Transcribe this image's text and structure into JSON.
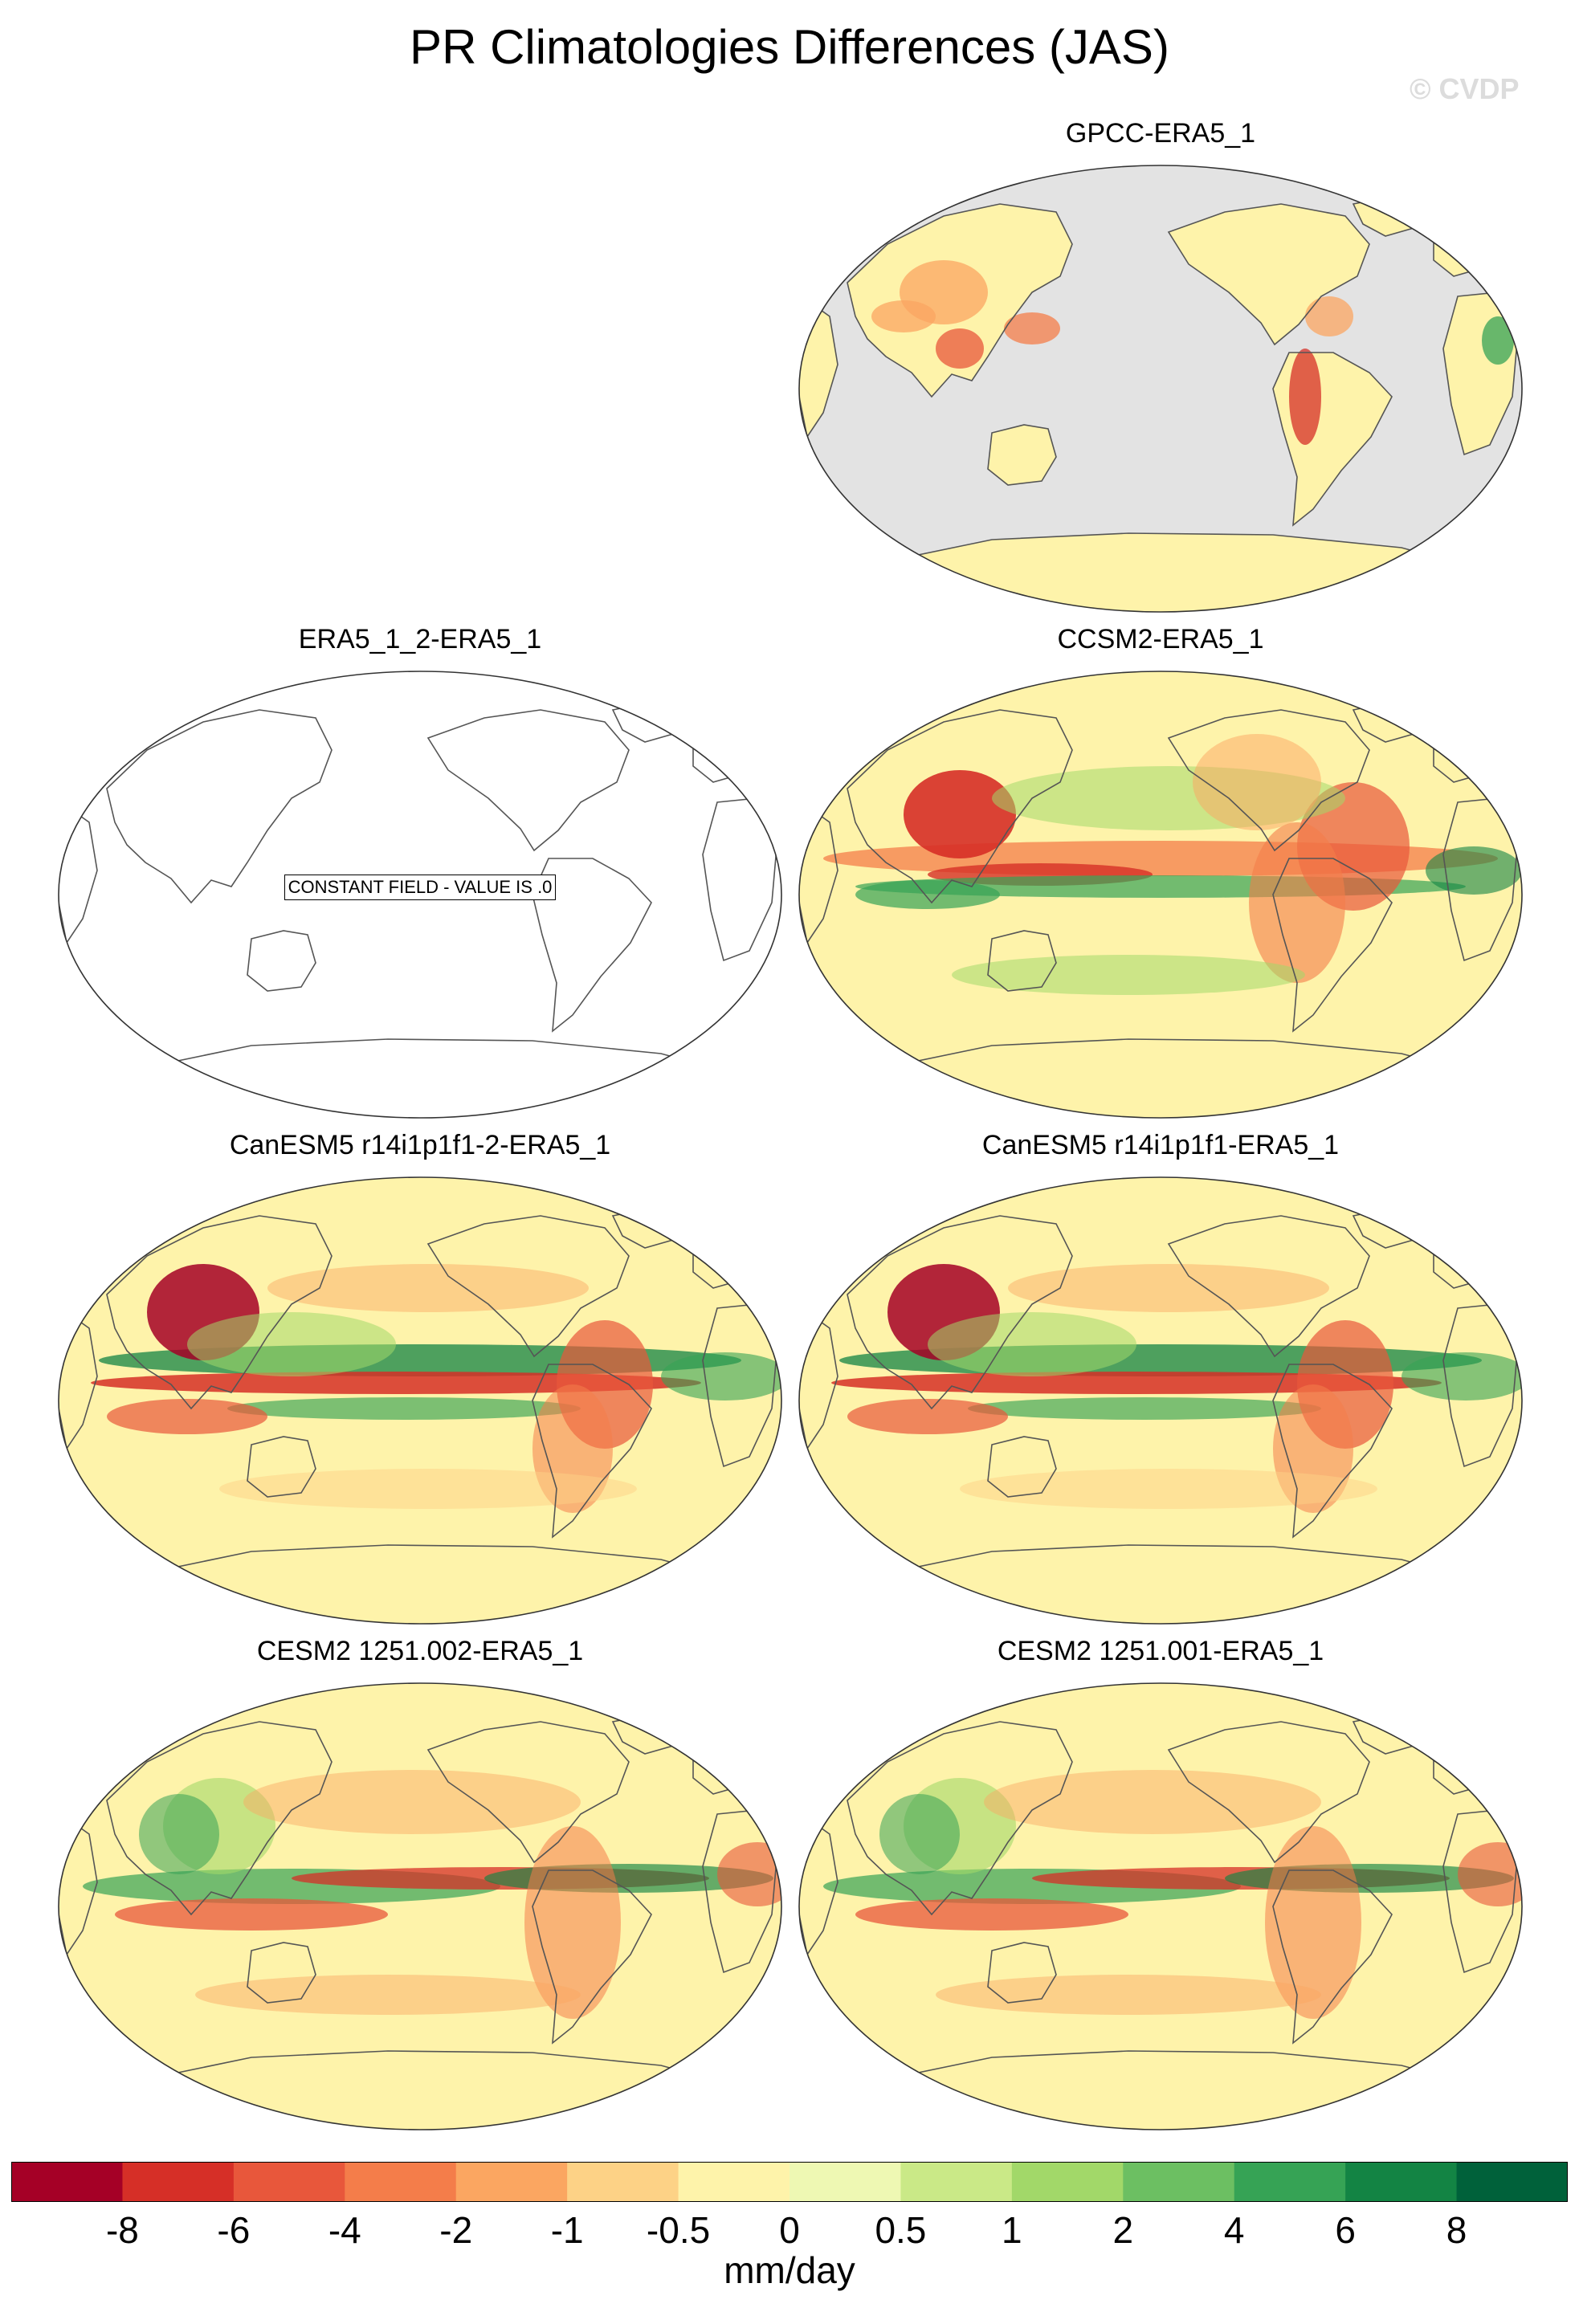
{
  "figure": {
    "title": "PR Climatologies Differences (JAS)",
    "watermark": "© CVDP"
  },
  "panels": [
    {
      "id": "gpcc",
      "title": "GPCC-ERA5_1",
      "kind": "obs_land"
    },
    {
      "id": "era5",
      "title": "ERA5_1_2-ERA5_1",
      "kind": "constant",
      "note": "CONSTANT FIELD - VALUE IS .0"
    },
    {
      "id": "ccsm2",
      "title": "CCSM2-ERA5_1",
      "kind": "model"
    },
    {
      "id": "canesm_2",
      "title": "CanESM5 r14i1p1f1-2-ERA5_1",
      "kind": "model"
    },
    {
      "id": "canesm",
      "title": "CanESM5 r14i1p1f1-ERA5_1",
      "kind": "model"
    },
    {
      "id": "cesm_002",
      "title": "CESM2 1251.002-ERA5_1",
      "kind": "model"
    },
    {
      "id": "cesm_001",
      "title": "CESM2 1251.001-ERA5_1",
      "kind": "model"
    }
  ],
  "colorbar": {
    "units": "mm/day",
    "tick_labels": [
      "-8",
      "-6",
      "-4",
      "-2",
      "-1",
      "-0.5",
      "0",
      "0.5",
      "1",
      "2",
      "4",
      "6",
      "8"
    ],
    "colors": [
      "#a50026",
      "#d62f27",
      "#e8573b",
      "#f47d4a",
      "#fba661",
      "#fdd286",
      "#fef3aa",
      "#eef8b3",
      "#cae987",
      "#a2d869",
      "#6cbf62",
      "#36a355",
      "#138444",
      "#00613a"
    ]
  },
  "map_colors": {
    "ocean_masked": "#e3e3e3",
    "coastline": "#555555",
    "background_field": "#fef3aa"
  }
}
